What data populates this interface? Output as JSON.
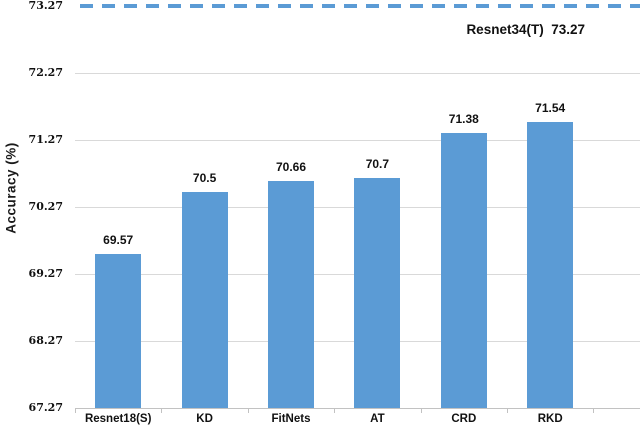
{
  "chart_data": {
    "type": "bar",
    "title": "",
    "categories": [
      "Resnet18(S)",
      "KD",
      "FitNets",
      "AT",
      "CRD",
      "RKD"
    ],
    "values": [
      69.57,
      70.5,
      70.66,
      70.7,
      71.38,
      71.54
    ],
    "bar_labels": [
      "69.57",
      "70.5",
      "70.66",
      "70.7",
      "71.38",
      "71.54"
    ],
    "xlabel": "",
    "ylabel": "Accuracy (%)",
    "yticks": [
      "73.27",
      "72.27",
      "71.27",
      "70.27",
      "69.27",
      "68.27",
      "67.27"
    ],
    "ylim": [
      67.27,
      73.27
    ],
    "grid": true,
    "legend": false,
    "reference_line": {
      "value": 73.27,
      "label": "Resnet34(T)  73.27",
      "style": "dashed"
    },
    "colors": {
      "bar": "#5B9BD5",
      "reference_line": "#5B9BD5",
      "gridline": "#D9D9D9",
      "axis": "#C2C2C2",
      "text": "#111111",
      "background": "#FFFFFF"
    }
  }
}
